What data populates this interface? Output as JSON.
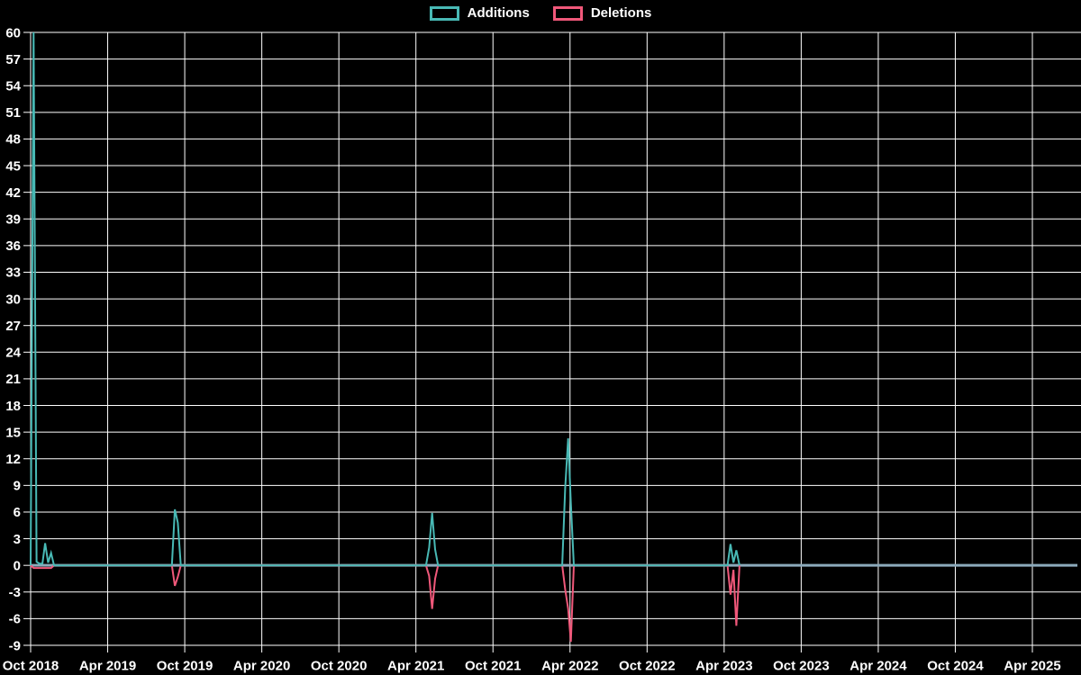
{
  "legend": {
    "position": "top",
    "items": [
      {
        "label": "Additions",
        "swatch_color": "#48b9b5"
      },
      {
        "label": "Deletions",
        "swatch_color": "#f0587a"
      }
    ]
  },
  "colors": {
    "background": "#000000",
    "grid": "#ffffff",
    "zero_line": "#8caabb",
    "additions": "#48b9b5",
    "deletions": "#f0587a",
    "text": "#ffffff"
  },
  "chart_data": {
    "type": "line",
    "title": "",
    "xlabel": "",
    "ylabel": "",
    "grid": true,
    "legend_position": "top",
    "x_axis": {
      "tick_labels": [
        "Oct 2018",
        "Apr 2019",
        "Oct 2019",
        "Apr 2020",
        "Oct 2020",
        "Apr 2021",
        "Oct 2021",
        "Apr 2022",
        "Oct 2022",
        "Apr 2023",
        "Oct 2023",
        "Apr 2024",
        "Oct 2024",
        "Apr 2025"
      ],
      "tick_interval_months": 6,
      "start": "2018-10",
      "axis_end": "2025-07"
    },
    "y_axis": {
      "min": -9,
      "max": 60,
      "tick_step": 3,
      "tick_labels": [
        60,
        57,
        54,
        51,
        48,
        45,
        42,
        39,
        36,
        33,
        30,
        27,
        24,
        21,
        18,
        15,
        12,
        9,
        6,
        3,
        0,
        -3,
        -6,
        -9
      ]
    },
    "series": [
      {
        "name": "Additions",
        "color": "#48b9b5",
        "points": [
          [
            "2018-10-01",
            0
          ],
          [
            "2018-10-08",
            60
          ],
          [
            "2018-10-15",
            0.4
          ],
          [
            "2018-10-22",
            0.2
          ],
          [
            "2018-10-29",
            0.2
          ],
          [
            "2018-11-05",
            2.5
          ],
          [
            "2018-11-12",
            0.3
          ],
          [
            "2018-11-19",
            1.4
          ],
          [
            "2018-11-26",
            0
          ],
          [
            "2019-09-01",
            0
          ],
          [
            "2019-09-08",
            6.3
          ],
          [
            "2019-09-15",
            4.8
          ],
          [
            "2019-09-22",
            0
          ],
          [
            "2021-04-25",
            0
          ],
          [
            "2021-05-02",
            2.0
          ],
          [
            "2021-05-09",
            5.9
          ],
          [
            "2021-05-16",
            1.8
          ],
          [
            "2021-05-23",
            0
          ],
          [
            "2022-03-13",
            0
          ],
          [
            "2022-03-20",
            8.7
          ],
          [
            "2022-03-27",
            14.3
          ],
          [
            "2022-04-03",
            7.0
          ],
          [
            "2022-04-10",
            0
          ],
          [
            "2023-04-09",
            0
          ],
          [
            "2023-04-16",
            2.4
          ],
          [
            "2023-04-23",
            0.3
          ],
          [
            "2023-04-30",
            1.7
          ],
          [
            "2023-05-07",
            0
          ]
        ]
      },
      {
        "name": "Deletions",
        "color": "#f0587a",
        "points": [
          [
            "2018-10-01",
            0
          ],
          [
            "2018-10-08",
            -0.3
          ],
          [
            "2018-10-15",
            -0.3
          ],
          [
            "2018-10-22",
            -0.3
          ],
          [
            "2018-10-29",
            -0.3
          ],
          [
            "2018-11-05",
            -0.3
          ],
          [
            "2018-11-12",
            -0.3
          ],
          [
            "2018-11-19",
            -0.3
          ],
          [
            "2018-11-26",
            0
          ],
          [
            "2019-09-01",
            0
          ],
          [
            "2019-09-08",
            -2.3
          ],
          [
            "2019-09-15",
            -1.3
          ],
          [
            "2019-09-22",
            0
          ],
          [
            "2021-04-25",
            0
          ],
          [
            "2021-05-02",
            -1.2
          ],
          [
            "2021-05-09",
            -4.9
          ],
          [
            "2021-05-16",
            -1.5
          ],
          [
            "2021-05-23",
            0
          ],
          [
            "2022-03-13",
            0
          ],
          [
            "2022-03-20",
            -2.7
          ],
          [
            "2022-03-27",
            -4.9
          ],
          [
            "2022-04-03",
            -8.6
          ],
          [
            "2022-04-10",
            0
          ],
          [
            "2023-04-09",
            0
          ],
          [
            "2023-04-16",
            -3.3
          ],
          [
            "2023-04-23",
            -0.5
          ],
          [
            "2023-04-30",
            -6.8
          ],
          [
            "2023-05-07",
            0
          ]
        ]
      }
    ]
  }
}
